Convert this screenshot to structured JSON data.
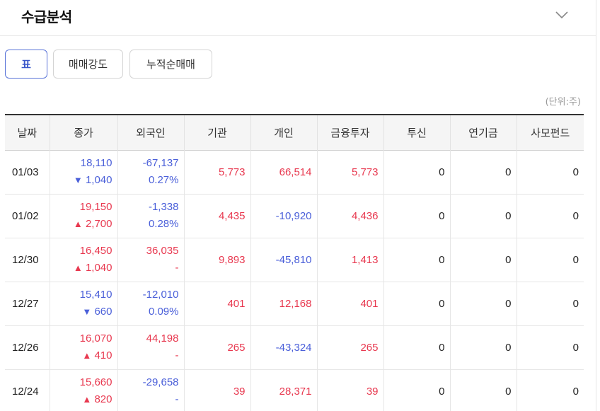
{
  "header": {
    "title": "수급분석"
  },
  "tabs": [
    {
      "label": "표",
      "active": true
    },
    {
      "label": "매매강도",
      "active": false
    },
    {
      "label": "누적순매매",
      "active": false
    }
  ],
  "unit_label": "(단위:주)",
  "table": {
    "columns": [
      "날짜",
      "종가",
      "외국인",
      "기관",
      "개인",
      "금융투자",
      "투신",
      "연기금",
      "사모펀드"
    ],
    "rows": [
      {
        "date": "01/03",
        "close": "18,110",
        "change": "1,040",
        "change_dir": "down",
        "foreign": "-67,137",
        "foreign_ratio": "0.27%",
        "inst": "5,773",
        "indiv": "66,514",
        "fininv": "5,773",
        "trust": "0",
        "pension": "0",
        "pef": "0"
      },
      {
        "date": "01/02",
        "close": "19,150",
        "change": "2,700",
        "change_dir": "up",
        "foreign": "-1,338",
        "foreign_ratio": "0.28%",
        "inst": "4,435",
        "indiv": "-10,920",
        "fininv": "4,436",
        "trust": "0",
        "pension": "0",
        "pef": "0"
      },
      {
        "date": "12/30",
        "close": "16,450",
        "change": "1,040",
        "change_dir": "up",
        "foreign": "36,035",
        "foreign_ratio": "-",
        "inst": "9,893",
        "indiv": "-45,810",
        "fininv": "1,413",
        "trust": "0",
        "pension": "0",
        "pef": "0"
      },
      {
        "date": "12/27",
        "close": "15,410",
        "change": "660",
        "change_dir": "down",
        "foreign": "-12,010",
        "foreign_ratio": "0.09%",
        "inst": "401",
        "indiv": "12,168",
        "fininv": "401",
        "trust": "0",
        "pension": "0",
        "pef": "0"
      },
      {
        "date": "12/26",
        "close": "16,070",
        "change": "410",
        "change_dir": "up",
        "foreign": "44,198",
        "foreign_ratio": "-",
        "inst": "265",
        "indiv": "-43,324",
        "fininv": "265",
        "trust": "0",
        "pension": "0",
        "pef": "0"
      },
      {
        "date": "12/24",
        "close": "15,660",
        "change": "820",
        "change_dir": "up",
        "foreign": "-29,658",
        "foreign_ratio": "-",
        "inst": "39",
        "indiv": "28,371",
        "fininv": "39",
        "trust": "0",
        "pension": "0",
        "pef": "0"
      }
    ]
  },
  "colors": {
    "up": "#e8384f",
    "down": "#4a5fd9",
    "accent": "#3a57c9"
  },
  "icons": {
    "collapse": "chevron-down-icon",
    "up": "triangle-up-icon",
    "down": "triangle-down-icon"
  }
}
